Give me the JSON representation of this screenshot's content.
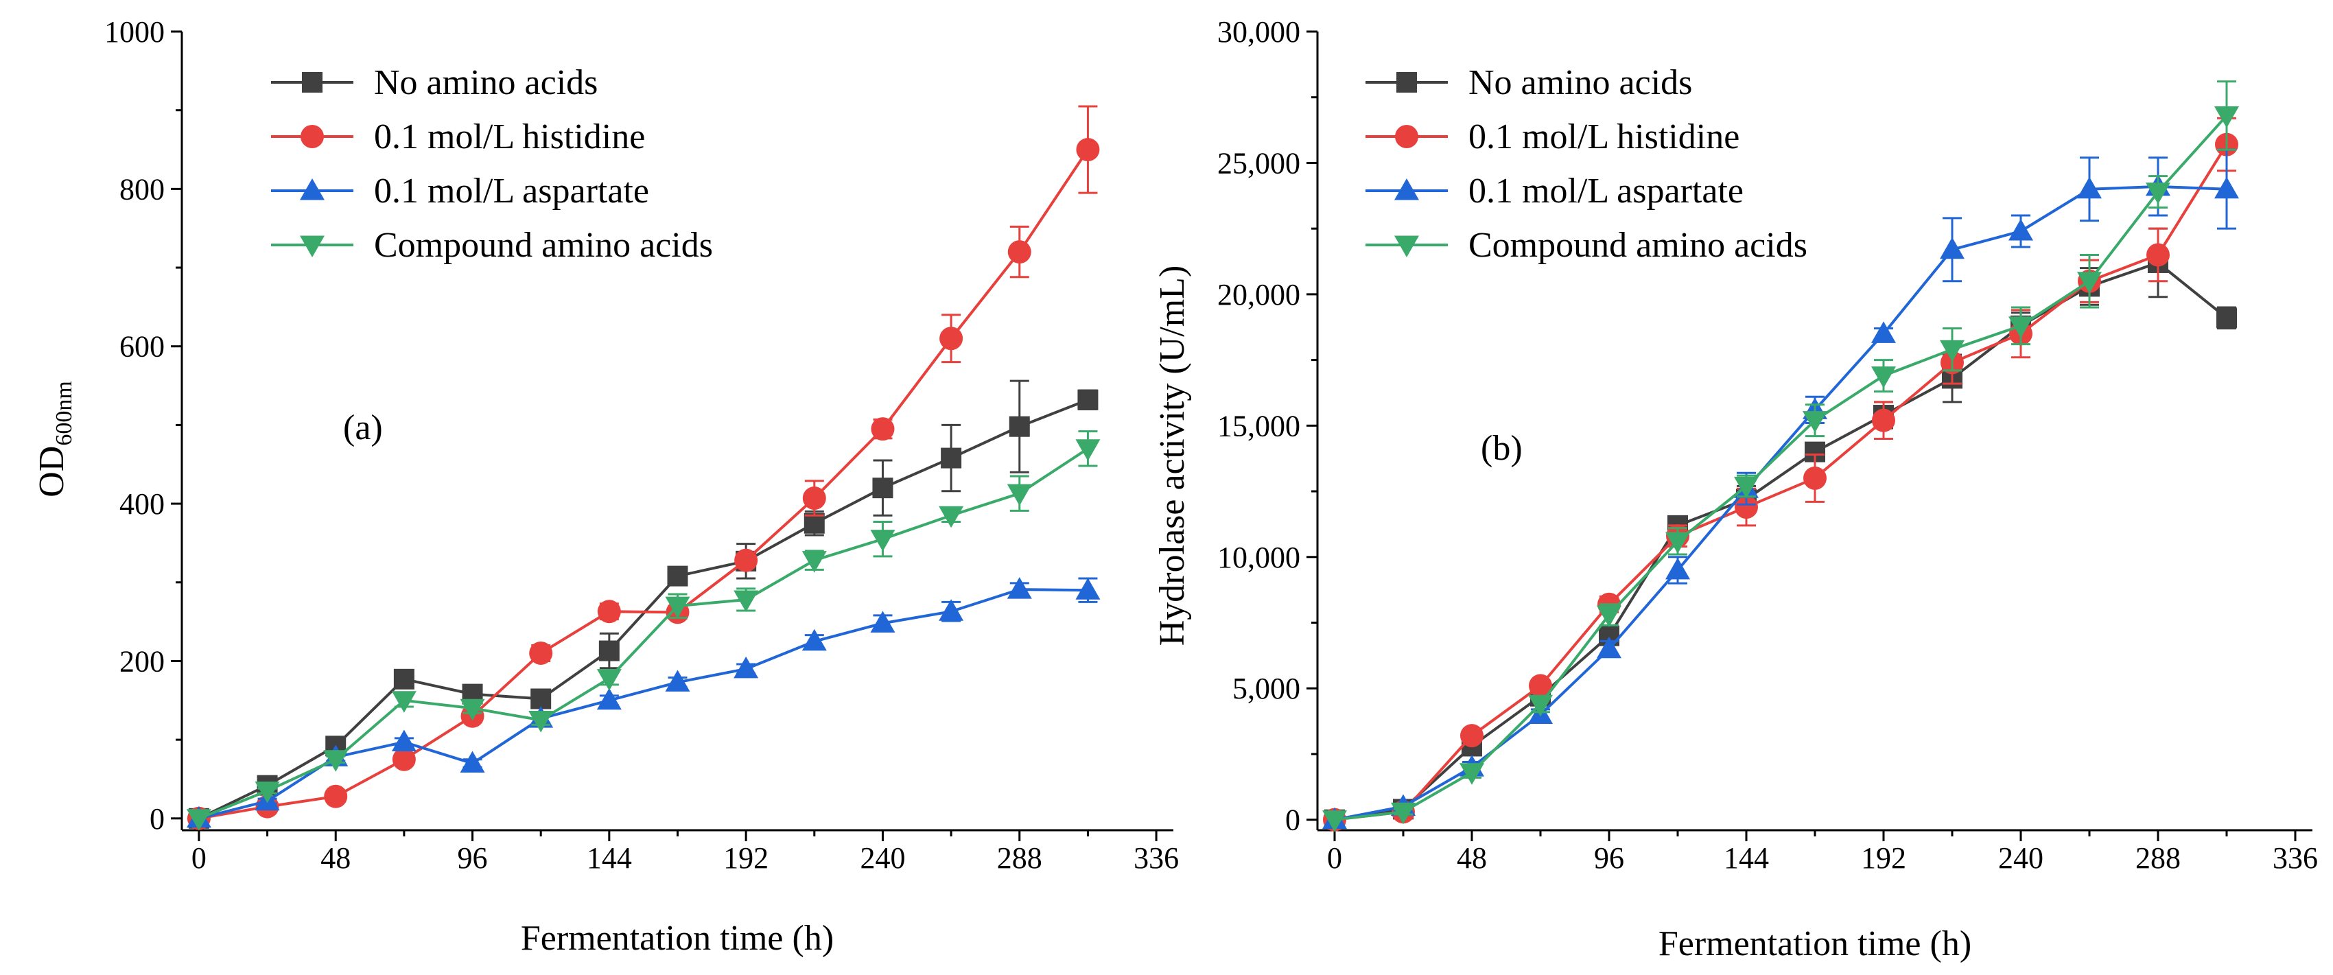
{
  "chart_data": [
    {
      "id": "a",
      "type": "line",
      "panel_label": "(a)",
      "xlabel": "Fermentation time (h)",
      "ylabel_main": "OD",
      "ylabel_sub": "600nm",
      "xlim": [
        -6,
        342
      ],
      "ylim": [
        -15,
        1000
      ],
      "x_ticks": [
        0,
        48,
        96,
        144,
        192,
        240,
        288,
        336
      ],
      "y_ticks": [
        0,
        200,
        400,
        600,
        800,
        1000
      ],
      "y_tick_labels": [
        "0",
        "200",
        "400",
        "600",
        "800",
        "1000"
      ],
      "x": [
        0,
        24,
        48,
        72,
        96,
        120,
        144,
        168,
        192,
        216,
        240,
        264,
        288,
        312
      ],
      "legend_position": "top-left",
      "series": [
        {
          "name": "No amino acids",
          "color": "#404040",
          "marker": "square",
          "values": [
            0,
            42,
            92,
            177,
            158,
            152,
            213,
            308,
            327,
            375,
            420,
            458,
            498,
            532
          ],
          "errors": [
            0,
            5,
            8,
            8,
            8,
            8,
            22,
            10,
            22,
            15,
            35,
            42,
            58,
            12
          ]
        },
        {
          "name": "0.1 mol/L histidine",
          "color": "#e8403c",
          "marker": "circle",
          "values": [
            0,
            15,
            28,
            75,
            130,
            210,
            263,
            262,
            328,
            407,
            495,
            610,
            720,
            850
          ],
          "errors": [
            0,
            3,
            4,
            5,
            8,
            10,
            10,
            8,
            8,
            22,
            12,
            30,
            32,
            55
          ]
        },
        {
          "name": "0.1 mol/L aspartate",
          "color": "#2166d6",
          "marker": "triangle-up",
          "values": [
            0,
            22,
            78,
            97,
            70,
            127,
            150,
            173,
            190,
            225,
            248,
            263,
            291,
            290
          ],
          "errors": [
            0,
            3,
            5,
            5,
            5,
            6,
            6,
            6,
            6,
            8,
            10,
            12,
            8,
            15
          ]
        },
        {
          "name": "Compound amino acids",
          "color": "#3aaa6a",
          "marker": "triangle-down",
          "values": [
            0,
            35,
            75,
            150,
            140,
            125,
            178,
            270,
            278,
            328,
            355,
            385,
            413,
            470
          ],
          "errors": [
            0,
            3,
            4,
            8,
            6,
            6,
            8,
            15,
            14,
            12,
            22,
            8,
            22,
            22
          ]
        }
      ]
    },
    {
      "id": "b",
      "type": "line",
      "panel_label": "(b)",
      "xlabel": "Fermentation time (h)",
      "ylabel": "Hydrolase activity (U/mL)",
      "xlim": [
        -6,
        342
      ],
      "ylim": [
        -400,
        30000
      ],
      "x_ticks": [
        0,
        48,
        96,
        144,
        192,
        240,
        288,
        336
      ],
      "y_ticks": [
        0,
        5000,
        10000,
        15000,
        20000,
        25000,
        30000
      ],
      "y_tick_labels": [
        "0",
        "5,000",
        "10,000",
        "15,000",
        "20,000",
        "25,000",
        "30,000"
      ],
      "x": [
        0,
        24,
        48,
        72,
        96,
        120,
        144,
        168,
        192,
        216,
        240,
        264,
        288,
        312
      ],
      "legend_position": "top-left",
      "series": [
        {
          "name": "No amino acids",
          "color": "#404040",
          "marker": "square",
          "values": [
            0,
            400,
            2800,
            4700,
            7000,
            11200,
            12200,
            14000,
            15400,
            16800,
            18800,
            20300,
            21200,
            19100
          ],
          "errors": [
            0,
            100,
            200,
            200,
            300,
            300,
            500,
            300,
            500,
            900,
            500,
            700,
            1300,
            400
          ]
        },
        {
          "name": "0.1 mol/L histidine",
          "color": "#e8403c",
          "marker": "circle",
          "values": [
            0,
            300,
            3200,
            5100,
            8200,
            10800,
            11900,
            13000,
            15200,
            17400,
            18500,
            20500,
            21500,
            25700
          ],
          "errors": [
            0,
            100,
            200,
            200,
            300,
            400,
            700,
            900,
            700,
            800,
            900,
            800,
            1000,
            1000
          ]
        },
        {
          "name": "0.1 mol/L aspartate",
          "color": "#2166d6",
          "marker": "triangle-up",
          "values": [
            0,
            500,
            2000,
            4000,
            6500,
            9500,
            12600,
            15600,
            18500,
            21700,
            22400,
            24000,
            24100,
            24000
          ],
          "errors": [
            0,
            100,
            200,
            200,
            300,
            500,
            600,
            500,
            200,
            1200,
            600,
            1200,
            1100,
            1500
          ]
        },
        {
          "name": "Compound amino acids",
          "color": "#3aaa6a",
          "marker": "triangle-down",
          "values": [
            0,
            300,
            1800,
            4400,
            7800,
            10600,
            12700,
            15200,
            16900,
            17900,
            18800,
            20500,
            23900,
            26800
          ],
          "errors": [
            0,
            100,
            200,
            300,
            400,
            500,
            400,
            600,
            600,
            800,
            700,
            1000,
            600,
            1300
          ]
        }
      ]
    }
  ]
}
